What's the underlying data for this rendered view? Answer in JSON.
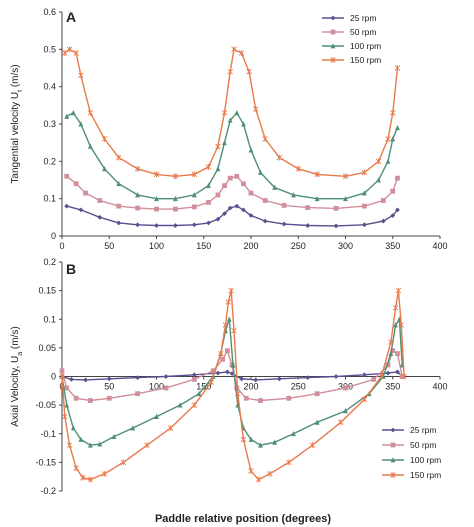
{
  "figure": {
    "xlabel": "Paddle relative position (degrees)"
  },
  "chart_data": [
    {
      "type": "line",
      "panel_label": "A",
      "ylabel": "Tangential velocity U",
      "ylabel_sub": "t",
      "ylabel_unit": " (m/s)",
      "xlim": [
        0,
        400
      ],
      "ylim": [
        0,
        0.6
      ],
      "xticks": [
        "0",
        "50",
        "100",
        "150",
        "200",
        "250",
        "300",
        "350",
        "400"
      ],
      "yticks": [
        "0",
        "0.1",
        "0.2",
        "0.3",
        "0.4",
        "0.5",
        "0.6"
      ],
      "grid": false,
      "legend_position": "top-right",
      "series": [
        {
          "name": "25 rpm",
          "color": "#5b4f8f",
          "marker": "diamond",
          "x": [
            5,
            20,
            40,
            60,
            80,
            100,
            120,
            140,
            155,
            165,
            172,
            178,
            185,
            192,
            200,
            215,
            235,
            260,
            290,
            320,
            340,
            350,
            355
          ],
          "y": [
            0.08,
            0.07,
            0.05,
            0.035,
            0.03,
            0.028,
            0.028,
            0.03,
            0.035,
            0.045,
            0.06,
            0.075,
            0.08,
            0.07,
            0.055,
            0.04,
            0.032,
            0.028,
            0.027,
            0.03,
            0.04,
            0.055,
            0.07
          ]
        },
        {
          "name": "50 rpm",
          "color": "#d08f9a",
          "marker": "square",
          "x": [
            5,
            15,
            25,
            40,
            60,
            80,
            100,
            120,
            140,
            155,
            165,
            172,
            178,
            185,
            192,
            200,
            215,
            235,
            260,
            290,
            320,
            340,
            350,
            355
          ],
          "y": [
            0.16,
            0.14,
            0.115,
            0.095,
            0.08,
            0.075,
            0.072,
            0.072,
            0.078,
            0.09,
            0.11,
            0.135,
            0.155,
            0.16,
            0.14,
            0.115,
            0.095,
            0.082,
            0.076,
            0.074,
            0.08,
            0.095,
            0.12,
            0.155
          ]
        },
        {
          "name": "100 rpm",
          "color": "#4f8f74",
          "marker": "triangle",
          "x": [
            5,
            12,
            20,
            30,
            45,
            60,
            80,
            100,
            120,
            140,
            155,
            165,
            172,
            178,
            185,
            192,
            200,
            210,
            225,
            245,
            270,
            300,
            320,
            335,
            345,
            350,
            355
          ],
          "y": [
            0.32,
            0.33,
            0.3,
            0.24,
            0.18,
            0.14,
            0.11,
            0.1,
            0.1,
            0.11,
            0.135,
            0.18,
            0.25,
            0.31,
            0.33,
            0.3,
            0.23,
            0.17,
            0.13,
            0.11,
            0.1,
            0.1,
            0.115,
            0.15,
            0.2,
            0.26,
            0.29
          ]
        },
        {
          "name": "150 rpm",
          "color": "#e87a4b",
          "marker": "star",
          "x": [
            3,
            8,
            15,
            20,
            30,
            45,
            60,
            80,
            100,
            120,
            140,
            155,
            165,
            172,
            178,
            182,
            190,
            198,
            205,
            215,
            230,
            250,
            270,
            300,
            320,
            335,
            345,
            350,
            355
          ],
          "y": [
            0.49,
            0.5,
            0.49,
            0.43,
            0.33,
            0.26,
            0.21,
            0.18,
            0.165,
            0.16,
            0.165,
            0.185,
            0.24,
            0.33,
            0.44,
            0.5,
            0.49,
            0.44,
            0.34,
            0.26,
            0.21,
            0.18,
            0.165,
            0.16,
            0.17,
            0.2,
            0.26,
            0.33,
            0.45
          ]
        }
      ]
    },
    {
      "type": "line",
      "panel_label": "B",
      "ylabel": "Axial Velocity, U",
      "ylabel_sub": "a",
      "ylabel_unit": " (m/s)",
      "xlim": [
        0,
        400
      ],
      "ylim": [
        -0.2,
        0.2
      ],
      "xticks": [
        "0",
        "50",
        "100",
        "150",
        "200",
        "250",
        "300",
        "350",
        "400"
      ],
      "yticks": [
        "-0.2",
        "-0.15",
        "-0.1",
        "-0.05",
        "0",
        "0.05",
        "0.1",
        "0.15",
        "0.2"
      ],
      "grid": false,
      "legend_position": "bottom-right",
      "series": [
        {
          "name": "25 rpm",
          "color": "#5b4f8f",
          "marker": "diamond",
          "x": [
            0,
            10,
            25,
            50,
            80,
            110,
            140,
            165,
            175,
            180,
            190,
            205,
            230,
            260,
            290,
            320,
            345,
            355,
            360
          ],
          "y": [
            0.0,
            -0.005,
            -0.006,
            -0.004,
            -0.002,
            0.0,
            0.003,
            0.006,
            0.008,
            0.005,
            -0.004,
            -0.006,
            -0.004,
            -0.002,
            0.0,
            0.003,
            0.006,
            0.008,
            0.0
          ]
        },
        {
          "name": "50 rpm",
          "color": "#d08f9a",
          "marker": "square",
          "x": [
            0,
            5,
            15,
            30,
            50,
            80,
            110,
            140,
            160,
            170,
            175,
            180,
            185,
            195,
            210,
            240,
            270,
            300,
            330,
            345,
            350,
            355,
            360
          ],
          "y": [
            0.01,
            -0.02,
            -0.038,
            -0.042,
            -0.038,
            -0.03,
            -0.02,
            -0.005,
            0.01,
            0.03,
            0.045,
            0.02,
            -0.02,
            -0.038,
            -0.042,
            -0.038,
            -0.03,
            -0.02,
            -0.005,
            0.02,
            0.045,
            0.04,
            0.0
          ]
        },
        {
          "name": "100 rpm",
          "color": "#4f8f74",
          "marker": "triangle",
          "x": [
            0,
            5,
            12,
            20,
            30,
            40,
            55,
            75,
            100,
            125,
            145,
            160,
            168,
            173,
            177,
            181,
            186,
            192,
            200,
            210,
            225,
            245,
            270,
            300,
            325,
            340,
            348,
            353,
            357,
            360
          ],
          "y": [
            0.0,
            -0.05,
            -0.09,
            -0.11,
            -0.12,
            -0.118,
            -0.105,
            -0.09,
            -0.07,
            -0.05,
            -0.03,
            0.0,
            0.04,
            0.08,
            0.1,
            0.02,
            -0.05,
            -0.09,
            -0.11,
            -0.12,
            -0.115,
            -0.1,
            -0.08,
            -0.06,
            -0.03,
            0.0,
            0.04,
            0.09,
            0.1,
            0.02
          ]
        },
        {
          "name": "150 rpm",
          "color": "#e87a4b",
          "marker": "star",
          "x": [
            0,
            3,
            8,
            15,
            22,
            30,
            45,
            65,
            90,
            115,
            140,
            158,
            168,
            173,
            176,
            179,
            182,
            186,
            192,
            200,
            208,
            220,
            240,
            265,
            295,
            320,
            338,
            348,
            353,
            356,
            359,
            362
          ],
          "y": [
            0.0,
            -0.07,
            -0.12,
            -0.16,
            -0.177,
            -0.18,
            -0.17,
            -0.15,
            -0.12,
            -0.09,
            -0.05,
            -0.01,
            0.04,
            0.09,
            0.13,
            0.15,
            0.08,
            -0.03,
            -0.11,
            -0.165,
            -0.18,
            -0.17,
            -0.15,
            -0.12,
            -0.08,
            -0.04,
            0.0,
            0.06,
            0.12,
            0.15,
            0.09,
            0.0
          ]
        }
      ]
    }
  ]
}
